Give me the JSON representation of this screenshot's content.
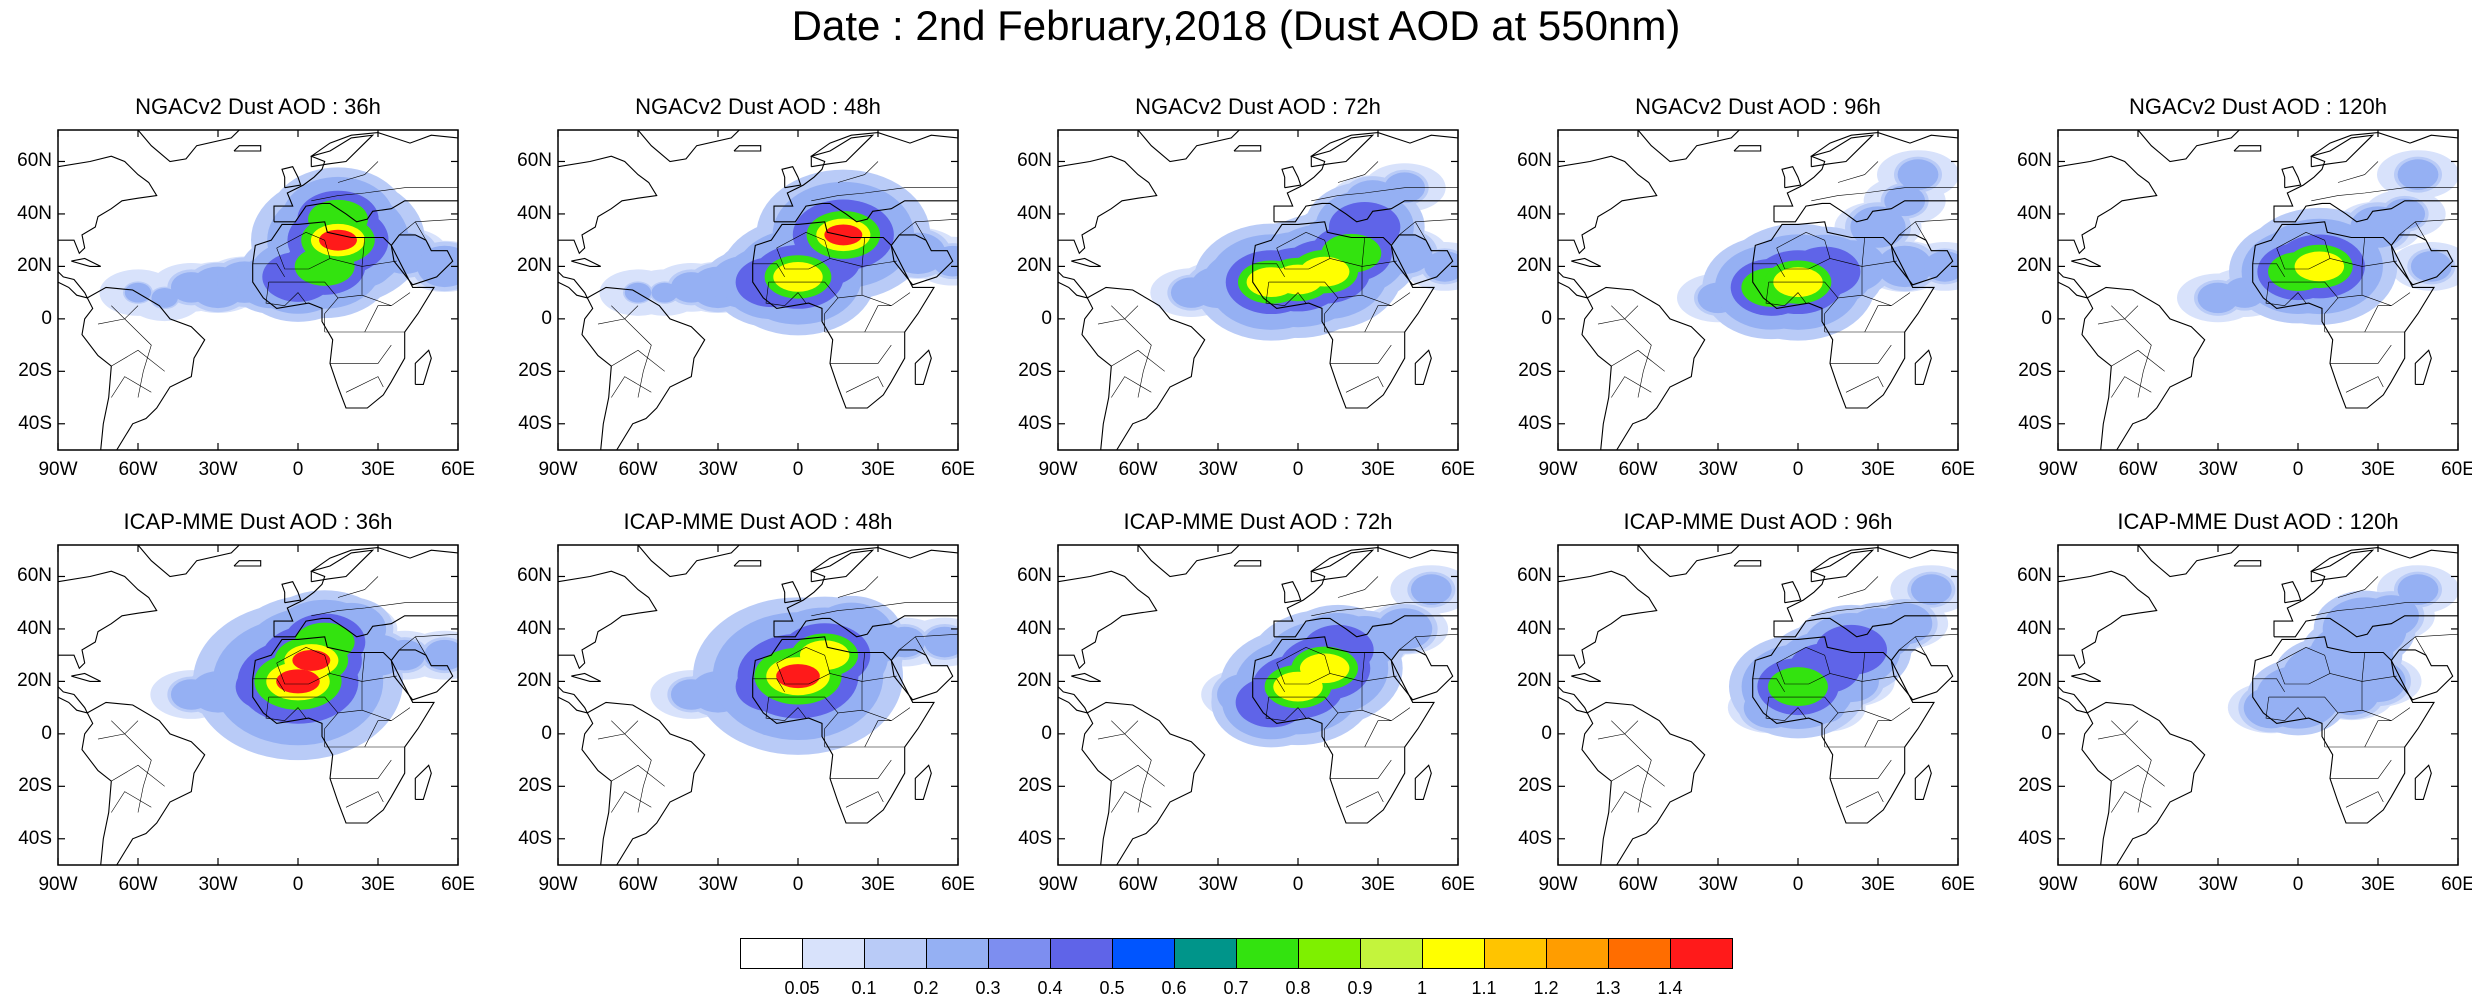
{
  "title": "Date : 2nd February,2018 (Dust AOD at 550nm)",
  "lat_labels": [
    "60N",
    "40N",
    "20N",
    "0",
    "20S",
    "40S"
  ],
  "lat_values": [
    60,
    40,
    20,
    0,
    -20,
    -40
  ],
  "lon_labels": [
    "90W",
    "60W",
    "30W",
    "0",
    "30E",
    "60E"
  ],
  "lon_values": [
    -90,
    -60,
    -30,
    0,
    30,
    60
  ],
  "map_extent": {
    "lon": [
      -90,
      60
    ],
    "lat": [
      -50,
      72
    ]
  },
  "panels": [
    {
      "title": "NGACv2 Dust AOD : 36h",
      "model": "NGACv2",
      "lead": 36,
      "plume": [
        [
          -60,
          10,
          1
        ],
        [
          -50,
          8,
          1
        ],
        [
          -40,
          12,
          2
        ],
        [
          -30,
          12,
          3
        ],
        [
          -20,
          14,
          3
        ],
        [
          -10,
          14,
          4
        ],
        [
          0,
          16,
          6
        ],
        [
          10,
          20,
          7
        ],
        [
          15,
          30,
          9
        ],
        [
          15,
          38,
          7
        ],
        [
          25,
          20,
          3
        ],
        [
          40,
          25,
          3
        ],
        [
          55,
          20,
          3
        ]
      ]
    },
    {
      "title": "NGACv2 Dust AOD : 48h",
      "model": "NGACv2",
      "lead": 48,
      "plume": [
        [
          -60,
          10,
          1
        ],
        [
          -50,
          10,
          1
        ],
        [
          -40,
          12,
          2
        ],
        [
          -30,
          12,
          3
        ],
        [
          -20,
          14,
          4
        ],
        [
          -10,
          14,
          6
        ],
        [
          0,
          16,
          8
        ],
        [
          10,
          22,
          6
        ],
        [
          17,
          32,
          9
        ],
        [
          18,
          40,
          5
        ],
        [
          28,
          25,
          3
        ],
        [
          45,
          25,
          3
        ],
        [
          58,
          22,
          2
        ]
      ]
    },
    {
      "title": "NGACv2 Dust AOD : 72h",
      "model": "NGACv2",
      "lead": 72,
      "plume": [
        [
          -40,
          10,
          2
        ],
        [
          -30,
          12,
          3
        ],
        [
          -20,
          14,
          5
        ],
        [
          -10,
          14,
          8
        ],
        [
          0,
          15,
          8
        ],
        [
          10,
          18,
          8
        ],
        [
          20,
          25,
          7
        ],
        [
          25,
          35,
          6
        ],
        [
          28,
          45,
          3
        ],
        [
          40,
          50,
          2
        ],
        [
          40,
          25,
          3
        ],
        [
          55,
          20,
          2
        ]
      ]
    },
    {
      "title": "NGACv2 Dust AOD : 96h",
      "model": "NGACv2",
      "lead": 96,
      "plume": [
        [
          -30,
          8,
          2
        ],
        [
          -20,
          12,
          3
        ],
        [
          -10,
          12,
          7
        ],
        [
          0,
          14,
          8
        ],
        [
          10,
          18,
          6
        ],
        [
          20,
          20,
          4
        ],
        [
          30,
          35,
          3
        ],
        [
          40,
          45,
          2
        ],
        [
          45,
          55,
          2
        ],
        [
          40,
          20,
          3
        ],
        [
          55,
          20,
          2
        ]
      ]
    },
    {
      "title": "NGACv2 Dust AOD : 120h",
      "model": "NGACv2",
      "lead": 120,
      "plume": [
        [
          -30,
          8,
          2
        ],
        [
          -20,
          10,
          2
        ],
        [
          -10,
          14,
          3
        ],
        [
          0,
          18,
          7
        ],
        [
          8,
          20,
          8
        ],
        [
          15,
          22,
          5
        ],
        [
          20,
          25,
          3
        ],
        [
          30,
          35,
          3
        ],
        [
          40,
          40,
          2
        ],
        [
          45,
          55,
          2
        ],
        [
          50,
          20,
          2
        ]
      ]
    },
    {
      "title": "ICAP-MME Dust AOD : 36h",
      "model": "ICAP-MME",
      "lead": 36,
      "plume": [
        [
          -40,
          15,
          2
        ],
        [
          -30,
          16,
          3
        ],
        [
          -20,
          18,
          4
        ],
        [
          -10,
          18,
          6
        ],
        [
          0,
          20,
          11
        ],
        [
          5,
          28,
          9
        ],
        [
          10,
          35,
          7
        ],
        [
          20,
          40,
          4
        ],
        [
          30,
          30,
          3
        ],
        [
          40,
          30,
          2
        ],
        [
          55,
          30,
          2
        ]
      ]
    },
    {
      "title": "ICAP-MME Dust AOD : 48h",
      "model": "ICAP-MME",
      "lead": 48,
      "plume": [
        [
          -40,
          15,
          2
        ],
        [
          -30,
          16,
          3
        ],
        [
          -20,
          18,
          4
        ],
        [
          -10,
          18,
          6
        ],
        [
          0,
          22,
          11
        ],
        [
          10,
          30,
          8
        ],
        [
          20,
          38,
          5
        ],
        [
          30,
          35,
          3
        ],
        [
          40,
          35,
          2
        ],
        [
          55,
          35,
          2
        ]
      ]
    },
    {
      "title": "ICAP-MME Dust AOD : 72h",
      "model": "ICAP-MME",
      "lead": 72,
      "plume": [
        [
          -20,
          15,
          3
        ],
        [
          -10,
          12,
          6
        ],
        [
          0,
          18,
          8
        ],
        [
          10,
          25,
          8
        ],
        [
          15,
          32,
          6
        ],
        [
          25,
          35,
          4
        ],
        [
          40,
          40,
          3
        ],
        [
          50,
          55,
          2
        ],
        [
          20,
          20,
          3
        ]
      ]
    },
    {
      "title": "ICAP-MME Dust AOD : 96h",
      "model": "ICAP-MME",
      "lead": 96,
      "plume": [
        [
          -10,
          10,
          3
        ],
        [
          0,
          18,
          7
        ],
        [
          10,
          25,
          6
        ],
        [
          20,
          32,
          6
        ],
        [
          30,
          38,
          4
        ],
        [
          40,
          42,
          3
        ],
        [
          50,
          55,
          2
        ],
        [
          20,
          20,
          3
        ],
        [
          10,
          10,
          2
        ]
      ]
    },
    {
      "title": "ICAP-MME Dust AOD : 120h",
      "model": "ICAP-MME",
      "lead": 120,
      "plume": [
        [
          -10,
          10,
          3
        ],
        [
          0,
          14,
          5
        ],
        [
          10,
          22,
          5
        ],
        [
          20,
          30,
          5
        ],
        [
          25,
          40,
          5
        ],
        [
          35,
          45,
          3
        ],
        [
          45,
          55,
          2
        ],
        [
          20,
          15,
          3
        ],
        [
          30,
          20,
          3
        ]
      ]
    }
  ],
  "colorbar": {
    "colors": [
      "#ffffff",
      "#d8e2fb",
      "#b9cbf7",
      "#95b0f3",
      "#7d8ef0",
      "#5f64e8",
      "#0055ff",
      "#00958a",
      "#33e30f",
      "#7ef000",
      "#c4f43c",
      "#ffff00",
      "#ffc400",
      "#ff9d00",
      "#ff6d00",
      "#ff1a1a"
    ],
    "labels": [
      "0.05",
      "0.1",
      "0.2",
      "0.3",
      "0.4",
      "0.5",
      "0.6",
      "0.7",
      "0.8",
      "0.9",
      "1",
      "1.1",
      "1.2",
      "1.3",
      "1.4"
    ]
  }
}
